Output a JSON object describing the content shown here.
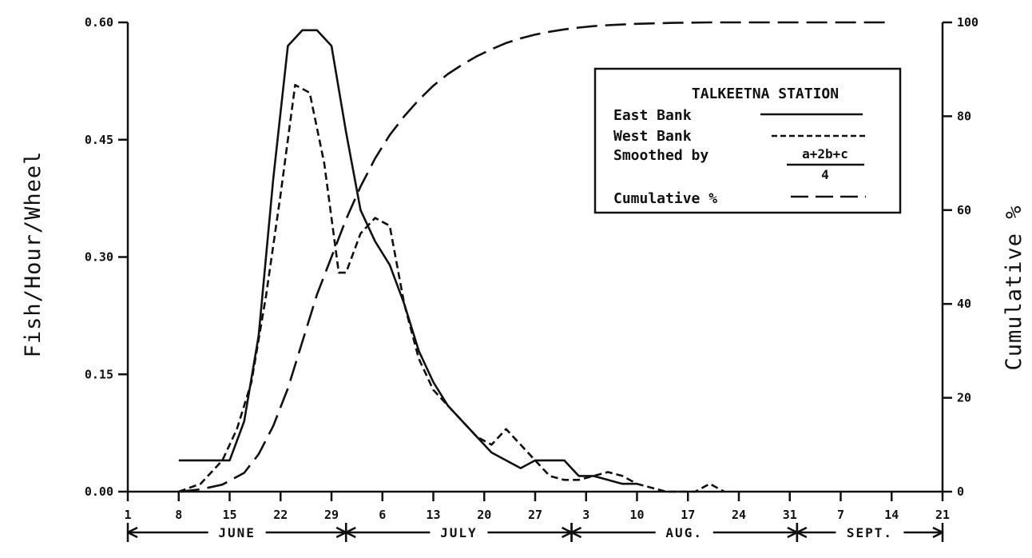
{
  "chart_data": {
    "type": "line",
    "xlabel": "",
    "ylabel": "Fish/Hour/Wheel",
    "y2label": "Cumulative %",
    "ylim": [
      0,
      0.6
    ],
    "y2lim": [
      0,
      100
    ],
    "yticks": [
      "0.00",
      "0.15",
      "0.30",
      "0.45",
      "0.60"
    ],
    "y2ticks": [
      "0",
      "20",
      "40",
      "60",
      "80",
      "100"
    ],
    "xlim": [
      0,
      112
    ],
    "xticks": [
      {
        "day": 0,
        "label": "1"
      },
      {
        "day": 7,
        "label": "8"
      },
      {
        "day": 14,
        "label": "15"
      },
      {
        "day": 21,
        "label": "22"
      },
      {
        "day": 28,
        "label": "29"
      },
      {
        "day": 35,
        "label": "6"
      },
      {
        "day": 42,
        "label": "13"
      },
      {
        "day": 49,
        "label": "20"
      },
      {
        "day": 56,
        "label": "27"
      },
      {
        "day": 63,
        "label": "3"
      },
      {
        "day": 70,
        "label": "10"
      },
      {
        "day": 77,
        "label": "17"
      },
      {
        "day": 84,
        "label": "24"
      },
      {
        "day": 91,
        "label": "31"
      },
      {
        "day": 98,
        "label": "7"
      },
      {
        "day": 105,
        "label": "14"
      },
      {
        "day": 112,
        "label": "21"
      }
    ],
    "months": [
      {
        "label": "JUNE",
        "start": 0,
        "end": 30
      },
      {
        "label": "JULY",
        "start": 30,
        "end": 61
      },
      {
        "label": "AUG.",
        "start": 61,
        "end": 92
      },
      {
        "label": "SEPT.",
        "start": 92,
        "end": 112
      }
    ],
    "legend": {
      "title": "TALKEETNA STATION",
      "entries": [
        "East Bank",
        "West Bank",
        "Smoothed by",
        "Cumulative %"
      ],
      "formula_numerator": "a+2b+c",
      "formula_denominator": "4"
    },
    "series": [
      {
        "name": "East Bank",
        "axis": "left",
        "style": "solid",
        "x": [
          7,
          14,
          16,
          18,
          20,
          22,
          24,
          26,
          28,
          30,
          32,
          34,
          36,
          38,
          40,
          42,
          44,
          46,
          48,
          50,
          52,
          54,
          56,
          58,
          60,
          62,
          64,
          66,
          68,
          70
        ],
        "y": [
          0.04,
          0.04,
          0.09,
          0.2,
          0.4,
          0.57,
          0.59,
          0.59,
          0.57,
          0.46,
          0.36,
          0.32,
          0.29,
          0.24,
          0.18,
          0.14,
          0.11,
          0.09,
          0.07,
          0.05,
          0.04,
          0.03,
          0.04,
          0.04,
          0.04,
          0.02,
          0.02,
          0.015,
          0.01,
          0.01
        ]
      },
      {
        "name": "West Bank",
        "axis": "left",
        "style": "dashed",
        "x": [
          7,
          10,
          13,
          15,
          17,
          19,
          21,
          23,
          25,
          27,
          29,
          30,
          32,
          34,
          36,
          38,
          40,
          42,
          44,
          46,
          48,
          50,
          52,
          54,
          56,
          58,
          60,
          62,
          64,
          66,
          68,
          70,
          72,
          74,
          76,
          78,
          80,
          82
        ],
        "y": [
          0.0,
          0.01,
          0.04,
          0.08,
          0.14,
          0.25,
          0.38,
          0.52,
          0.51,
          0.42,
          0.28,
          0.28,
          0.33,
          0.35,
          0.34,
          0.24,
          0.17,
          0.13,
          0.11,
          0.09,
          0.07,
          0.06,
          0.08,
          0.06,
          0.04,
          0.02,
          0.015,
          0.015,
          0.02,
          0.025,
          0.02,
          0.01,
          0.005,
          0.0,
          0.0,
          0.0,
          0.01,
          0.0
        ]
      },
      {
        "name": "Cumulative %",
        "axis": "right",
        "style": "long-dash",
        "x": [
          7,
          10,
          13,
          16,
          18,
          20,
          22,
          24,
          26,
          28,
          30,
          32,
          34,
          36,
          38,
          40,
          42,
          44,
          46,
          48,
          50,
          52,
          54,
          56,
          58,
          60,
          62,
          64,
          66,
          70,
          75,
          80,
          90,
          100,
          105
        ],
        "y": [
          0,
          0.5,
          1.5,
          4,
          8,
          14,
          22,
          32,
          42,
          50,
          58,
          65,
          71,
          76,
          80,
          83.5,
          86.5,
          89,
          91,
          92.8,
          94.3,
          95.6,
          96.6,
          97.4,
          98,
          98.5,
          98.9,
          99.2,
          99.4,
          99.7,
          99.9,
          100,
          100,
          100,
          100
        ]
      }
    ]
  }
}
